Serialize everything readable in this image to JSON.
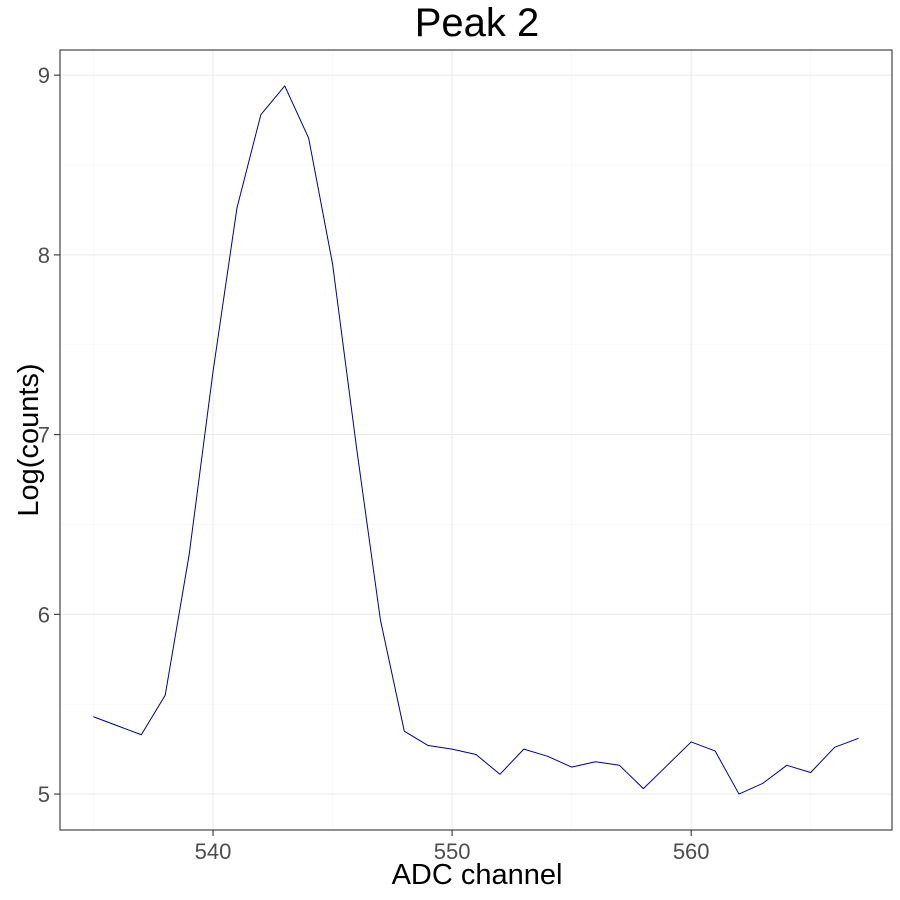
{
  "chart_data": {
    "type": "line",
    "title": "Peak 2",
    "xlabel": "ADC channel",
    "ylabel": "Log(counts)",
    "xlim": [
      533.6,
      568.4
    ],
    "ylim": [
      4.8,
      9.14
    ],
    "x_ticks": [
      540,
      550,
      560
    ],
    "y_ticks": [
      5,
      6,
      7,
      8,
      9
    ],
    "x_minor": [
      535,
      545,
      555,
      565
    ],
    "y_minor": [
      5.5,
      6.5,
      7.5,
      8.5
    ],
    "grid": true,
    "line_color": "#00008b",
    "series": [
      {
        "x": [
          535,
          536,
          537,
          538,
          539,
          540,
          541,
          542,
          543,
          544,
          545,
          546,
          547,
          548,
          549,
          550,
          551,
          552,
          553,
          554,
          555,
          556,
          557,
          558,
          559,
          560,
          561,
          562,
          563,
          564,
          565,
          566,
          567
        ],
        "values": [
          5.43,
          5.38,
          5.33,
          5.55,
          6.33,
          7.35,
          8.26,
          8.78,
          8.94,
          8.65,
          7.95,
          6.93,
          5.97,
          5.35,
          5.27,
          5.25,
          5.22,
          5.11,
          5.25,
          5.21,
          5.15,
          5.18,
          5.16,
          5.03,
          5.16,
          5.29,
          5.24,
          5.0,
          5.06,
          5.16,
          5.12,
          5.26,
          5.31
        ]
      }
    ]
  }
}
